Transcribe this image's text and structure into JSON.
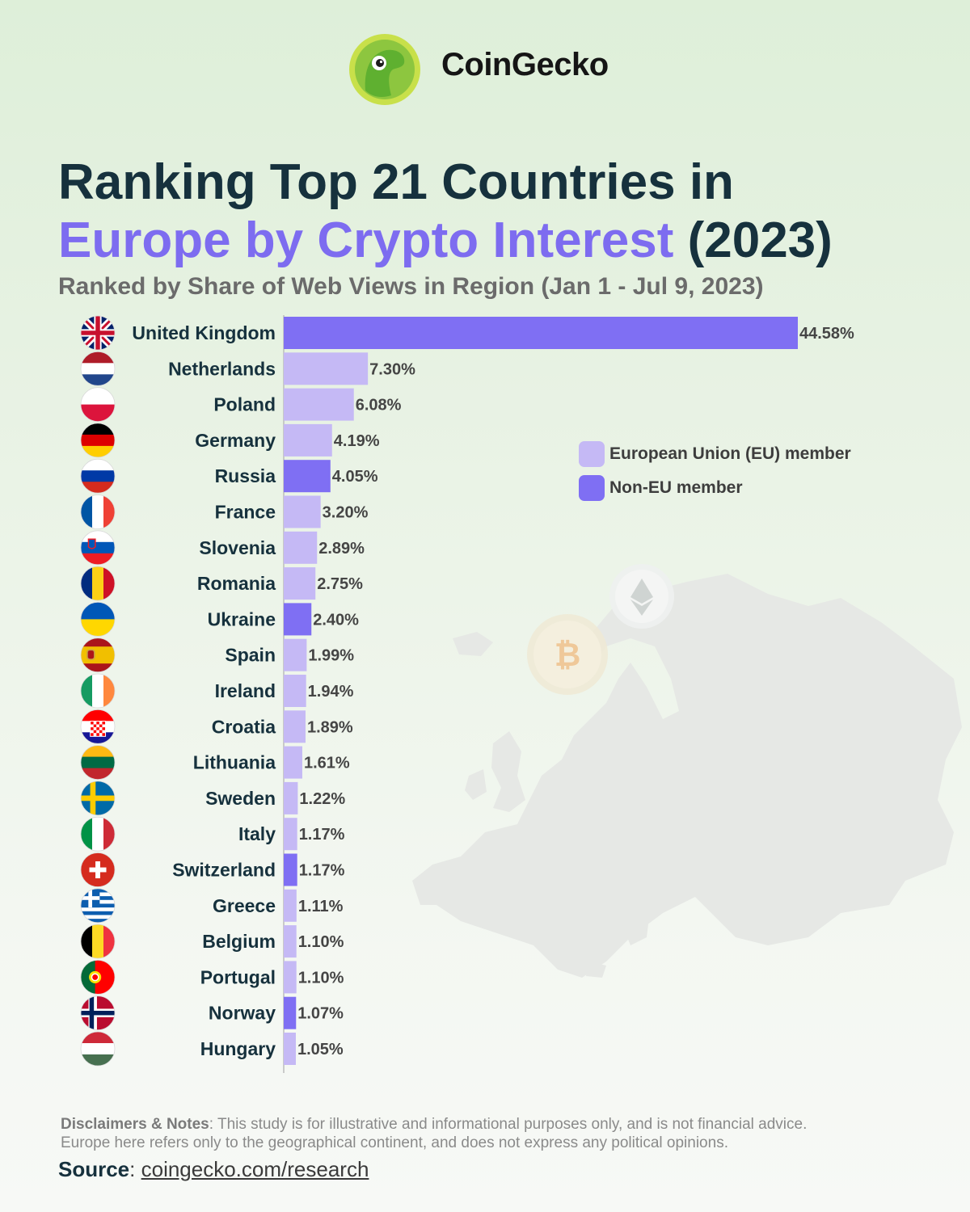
{
  "brand": {
    "name": "CoinGecko",
    "logo": "gecko-logo-icon"
  },
  "header": {
    "title_line1": "Ranking Top 21 Countries in",
    "title_line2_accent": "Europe by Crypto Interest",
    "title_line2_rest": " (2023)",
    "subtitle": "Ranked by Share of Web Views in Region (Jan 1 - Jul 9, 2023)"
  },
  "legend": {
    "eu_label": "European Union (EU) member",
    "non_eu_label": "Non-EU member"
  },
  "colors": {
    "eu": "#c5b9f5",
    "non_eu": "#7f6ff3",
    "title_dark": "#16313d",
    "title_accent": "#7d6cf0"
  },
  "chart_data": {
    "type": "bar",
    "orientation": "horizontal",
    "title": "Ranking Top 21 Countries in Europe by Crypto Interest (2023)",
    "subtitle": "Ranked by Share of Web Views in Region (Jan 1 - Jul 9, 2023)",
    "xlabel": "",
    "ylabel": "",
    "unit": "%",
    "xlim": [
      0,
      44.58
    ],
    "categories": [
      "United Kingdom",
      "Netherlands",
      "Poland",
      "Germany",
      "Russia",
      "France",
      "Slovenia",
      "Romania",
      "Ukraine",
      "Spain",
      "Ireland",
      "Croatia",
      "Lithuania",
      "Sweden",
      "Italy",
      "Switzerland",
      "Greece",
      "Belgium",
      "Portugal",
      "Norway",
      "Hungary"
    ],
    "values": [
      44.58,
      7.3,
      6.08,
      4.19,
      4.05,
      3.2,
      2.89,
      2.75,
      2.4,
      1.99,
      1.94,
      1.89,
      1.61,
      1.22,
      1.17,
      1.17,
      1.11,
      1.1,
      1.1,
      1.07,
      1.05
    ],
    "labels": [
      "44.58%",
      "7.30%",
      "6.08%",
      "4.19%",
      "4.05%",
      "3.20%",
      "2.89%",
      "2.75%",
      "2.40%",
      "1.99%",
      "1.94%",
      "1.89%",
      "1.61%",
      "1.22%",
      "1.17%",
      "1.17%",
      "1.11%",
      "1.10%",
      "1.10%",
      "1.07%",
      "1.05%"
    ],
    "eu_member": [
      false,
      true,
      true,
      true,
      false,
      true,
      true,
      true,
      false,
      true,
      true,
      true,
      true,
      true,
      true,
      false,
      true,
      true,
      true,
      false,
      true
    ],
    "legend": [
      "European Union (EU) member",
      "Non-EU member"
    ],
    "legend_position": "right"
  },
  "footer": {
    "notes_label": "Disclaimers & Notes",
    "notes_line1": ": This study is for illustrative and informational purposes only, and is not financial advice.",
    "notes_line2": "Europe here refers only to the geographical continent, and does not express any political opinions.",
    "source_label": "Source",
    "source_sep": ": ",
    "source_link": "coingecko.com/research"
  }
}
